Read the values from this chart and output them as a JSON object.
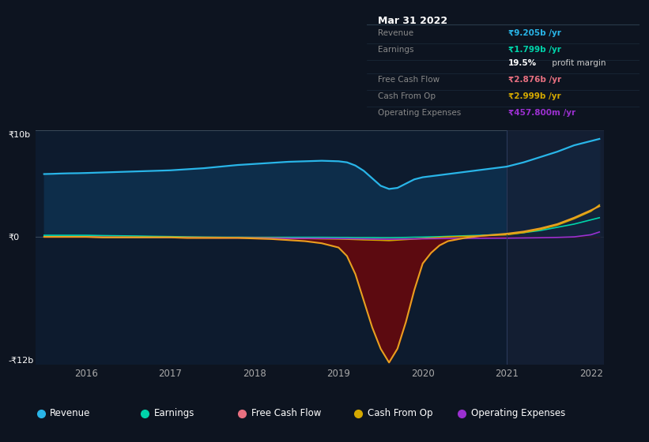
{
  "bg_color": "#0d1420",
  "chart_bg": "#0d1b2e",
  "title": "Mar 31 2022",
  "years_x": [
    2015.5,
    2015.6,
    2015.7,
    2015.8,
    2015.9,
    2016.0,
    2016.2,
    2016.4,
    2016.6,
    2016.8,
    2017.0,
    2017.2,
    2017.4,
    2017.6,
    2017.8,
    2018.0,
    2018.2,
    2018.4,
    2018.6,
    2018.8,
    2019.0,
    2019.1,
    2019.2,
    2019.3,
    2019.4,
    2019.5,
    2019.6,
    2019.7,
    2019.8,
    2019.9,
    2020.0,
    2020.1,
    2020.2,
    2020.3,
    2020.5,
    2020.7,
    2021.0,
    2021.2,
    2021.4,
    2021.6,
    2021.8,
    2022.0,
    2022.1
  ],
  "revenue": [
    5.9,
    5.92,
    5.95,
    5.97,
    5.98,
    6.0,
    6.05,
    6.1,
    6.15,
    6.2,
    6.25,
    6.35,
    6.45,
    6.6,
    6.75,
    6.85,
    6.95,
    7.05,
    7.1,
    7.15,
    7.1,
    7.0,
    6.7,
    6.2,
    5.5,
    4.8,
    4.5,
    4.6,
    5.0,
    5.4,
    5.6,
    5.7,
    5.8,
    5.9,
    6.1,
    6.3,
    6.6,
    7.0,
    7.5,
    8.0,
    8.6,
    9.0,
    9.2
  ],
  "earnings": [
    0.15,
    0.15,
    0.15,
    0.15,
    0.15,
    0.15,
    0.12,
    0.1,
    0.08,
    0.05,
    0.03,
    0.0,
    -0.02,
    -0.03,
    -0.03,
    -0.04,
    -0.04,
    -0.04,
    -0.04,
    -0.04,
    -0.05,
    -0.05,
    -0.06,
    -0.06,
    -0.06,
    -0.07,
    -0.07,
    -0.06,
    -0.05,
    -0.03,
    -0.02,
    0.0,
    0.02,
    0.05,
    0.1,
    0.15,
    0.25,
    0.4,
    0.6,
    0.9,
    1.2,
    1.6,
    1.799
  ],
  "free_cash_flow": [
    0.0,
    0.0,
    0.0,
    0.0,
    0.0,
    0.0,
    -0.05,
    -0.05,
    -0.05,
    -0.05,
    -0.05,
    -0.1,
    -0.1,
    -0.1,
    -0.1,
    -0.15,
    -0.2,
    -0.3,
    -0.4,
    -0.6,
    -1.0,
    -1.8,
    -3.5,
    -6.0,
    -8.5,
    -10.5,
    -11.8,
    -10.5,
    -8.0,
    -5.0,
    -2.5,
    -1.5,
    -0.8,
    -0.4,
    -0.1,
    0.1,
    0.3,
    0.5,
    0.8,
    1.2,
    1.8,
    2.5,
    2.876
  ],
  "cash_from_op": [
    0.0,
    0.0,
    0.0,
    0.0,
    0.0,
    0.0,
    -0.02,
    -0.02,
    -0.02,
    -0.02,
    -0.02,
    -0.03,
    -0.04,
    -0.05,
    -0.06,
    -0.08,
    -0.1,
    -0.12,
    -0.15,
    -0.18,
    -0.2,
    -0.22,
    -0.25,
    -0.28,
    -0.3,
    -0.32,
    -0.35,
    -0.3,
    -0.25,
    -0.2,
    -0.15,
    -0.1,
    -0.05,
    0.0,
    0.05,
    0.1,
    0.2,
    0.4,
    0.7,
    1.1,
    1.7,
    2.4,
    2.999
  ],
  "op_expenses": [
    0.0,
    0.0,
    0.0,
    0.0,
    0.0,
    0.0,
    -0.03,
    -0.04,
    -0.05,
    -0.06,
    -0.07,
    -0.08,
    -0.09,
    -0.1,
    -0.1,
    -0.1,
    -0.12,
    -0.13,
    -0.14,
    -0.15,
    -0.16,
    -0.17,
    -0.18,
    -0.19,
    -0.2,
    -0.21,
    -0.22,
    -0.21,
    -0.2,
    -0.19,
    -0.18,
    -0.17,
    -0.16,
    -0.15,
    -0.14,
    -0.13,
    -0.12,
    -0.1,
    -0.08,
    -0.05,
    0.0,
    0.2,
    0.4578
  ],
  "revenue_color": "#29b5e8",
  "revenue_fill": "#0d2d4a",
  "earnings_color": "#00d4aa",
  "fcf_color": "#e8a020",
  "fcf_line_color": "#e8a020",
  "fcf_fill": "#5c0a10",
  "cash_from_op_color": "#d4a800",
  "op_expenses_color": "#9b30d0",
  "overlay_start": 2021.0,
  "overlay_end": 2022.15,
  "overlay_color": "#162035",
  "ylim_min": -12,
  "ylim_max": 10,
  "xlim_min": 2015.4,
  "xlim_max": 2022.15,
  "xtick_labels": [
    "2016",
    "2017",
    "2018",
    "2019",
    "2020",
    "2021",
    "2022"
  ],
  "xtick_values": [
    2016,
    2017,
    2018,
    2019,
    2020,
    2021,
    2022
  ],
  "legend_items": [
    {
      "label": "Revenue",
      "color": "#29b5e8"
    },
    {
      "label": "Earnings",
      "color": "#00d4aa"
    },
    {
      "label": "Free Cash Flow",
      "color": "#e87080"
    },
    {
      "label": "Cash From Op",
      "color": "#d4a800"
    },
    {
      "label": "Operating Expenses",
      "color": "#9b30d0"
    }
  ],
  "info_box": {
    "title": "Mar 31 2022",
    "rows": [
      {
        "label": "Revenue",
        "value": "₹9.205b",
        "suffix": " /yr",
        "value_color": "#29b5e8"
      },
      {
        "label": "Earnings",
        "value": "₹1.799b",
        "suffix": " /yr",
        "value_color": "#00d4aa"
      },
      {
        "label": "",
        "value": "19.5%",
        "suffix": " profit margin",
        "value_color": "#ffffff",
        "suffix_color": "#cccccc"
      },
      {
        "label": "Free Cash Flow",
        "value": "₹2.876b",
        "suffix": " /yr",
        "value_color": "#e87080"
      },
      {
        "label": "Cash From Op",
        "value": "₹2.999b",
        "suffix": " /yr",
        "value_color": "#d4a800"
      },
      {
        "label": "Operating Expenses",
        "value": "₹457.800m",
        "suffix": " /yr",
        "value_color": "#9b30d0"
      }
    ]
  }
}
